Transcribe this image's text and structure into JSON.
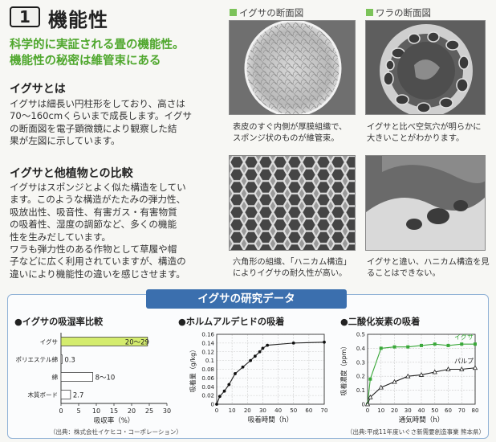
{
  "header": {
    "section_number": "1",
    "title": "機能性"
  },
  "lead": {
    "line1": "科学的に実証される畳の機能性。",
    "line2": "機能性の秘密は維管束にある"
  },
  "igusa_section": {
    "heading": "イグサとは",
    "lines": [
      "イグサは細長い円柱形をしており、高さは",
      "70～160cmくらいまで成長します。イグサ",
      "の断面図を電子顕微鏡により観察した結",
      "果が左図に示しています。"
    ]
  },
  "comparison_section": {
    "heading": "イグサと他植物との比較",
    "lines": [
      "イグサはスポンジとよく似た構造をしてい",
      "ます。このような構造がたたみの弾力性、",
      "吸放出性、吸音性、有害ガス・有害物質",
      "の吸着性、湿度の調節など、多くの機能",
      "性を生みだしています。",
      "ワラも弾力性のある作物として草履や帽",
      "子などに広く利用されていますが、構造の",
      "違いにより機能性の違いを感じさせます。"
    ]
  },
  "photos": {
    "igusa_label": "イグサの断面図",
    "wara_label": "ワラの断面図",
    "igusa_cross_caption": [
      "表皮のすぐ内側が厚膜組織で、",
      "スポンジ状のものが維管束。"
    ],
    "wara_cross_caption": [
      "イグサと比べ空気穴が明らかに",
      "大きいことがわかります。"
    ],
    "igusa_detail_caption": [
      "六角形の組織、「ハニカム構造」",
      "によりイグサの耐久性が高い。"
    ],
    "wara_detail_caption": [
      "イグサと違い、ハニカム構造を見",
      "ることはできない。"
    ]
  },
  "research": {
    "banner": "イグサの研究データ",
    "source_left": "（出典：株式会社イケヒコ・コーポレーション）",
    "source_right": "（出典:平成11年度いぐさ新需要創造事業 熊本県）"
  },
  "chart_data": [
    {
      "type": "bar",
      "title": "●イグサの吸湿率比較",
      "orientation": "horizontal",
      "categories": [
        "イグサ",
        "ポリエステル綿",
        "綿",
        "木質ボード"
      ],
      "values": [
        24.5,
        0.3,
        9,
        2.7
      ],
      "value_labels": [
        "20～29",
        "0.3",
        "8～10",
        "2.7"
      ],
      "colors": [
        "#d4ec6e",
        "#ffffff",
        "#ffffff",
        "#ffffff"
      ],
      "xlabel": "吸収率（%）",
      "xlim": [
        0,
        30
      ],
      "xticks": [
        "0",
        "5",
        "10",
        "15",
        "20",
        "25",
        "30"
      ]
    },
    {
      "type": "line",
      "title": "●ホルムアルデヒドの吸着",
      "series": [
        {
          "x": [
            0,
            2,
            5,
            8,
            12,
            17,
            22,
            25,
            28,
            30,
            33,
            50,
            70
          ],
          "values": [
            0,
            0.018,
            0.03,
            0.045,
            0.07,
            0.085,
            0.1,
            0.11,
            0.12,
            0.128,
            0.135,
            0.14,
            0.142
          ]
        }
      ],
      "xlabel": "吸着時間（h）",
      "ylabel": "吸着量（g/kg）",
      "xlim": [
        0,
        70
      ],
      "ylim": [
        0,
        0.16
      ],
      "xticks": [
        "0",
        "10",
        "20",
        "30",
        "40",
        "50",
        "60",
        "70"
      ],
      "yticks": [
        "0",
        "0.02",
        "0.04",
        "0.06",
        "0.08",
        "0.1",
        "0.12",
        "0.14",
        "0.16"
      ],
      "grid": true
    },
    {
      "type": "line",
      "title": "●二酸化炭素の吸着",
      "series": [
        {
          "name": "イグサ",
          "color": "#3aa83a",
          "x": [
            0,
            2,
            10,
            20,
            30,
            40,
            50,
            60,
            70,
            80
          ],
          "values": [
            0,
            0.18,
            0.4,
            0.41,
            0.41,
            0.42,
            0.43,
            0.42,
            0.43,
            0.43
          ]
        },
        {
          "name": "パルプ",
          "color": "#222222",
          "x": [
            0,
            2,
            10,
            20,
            30,
            40,
            50,
            60,
            70,
            80
          ],
          "values": [
            0,
            0.05,
            0.12,
            0.16,
            0.2,
            0.21,
            0.23,
            0.25,
            0.25,
            0.26
          ]
        }
      ],
      "xlabel": "通気時間（h）",
      "ylabel": "吸着濃度（ppm）",
      "xlim": [
        0,
        80
      ],
      "ylim": [
        0,
        0.5
      ],
      "xticks": [
        "0",
        "10",
        "20",
        "30",
        "40",
        "50",
        "60",
        "70",
        "80"
      ],
      "yticks": [
        "0",
        "0.1",
        "0.2",
        "0.3",
        "0.4",
        "0.5"
      ],
      "grid": true
    }
  ]
}
